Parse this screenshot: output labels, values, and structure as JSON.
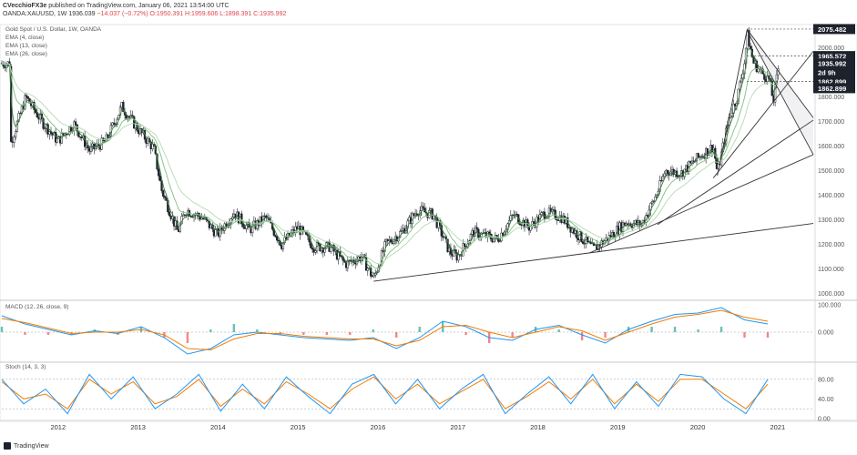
{
  "header": {
    "author": "CVecchioFX3e",
    "published": "published on TradingView.com, January 06, 2021 13:54:00 UTC"
  },
  "symbol_line": {
    "ticker": "OANDA:XAUUSD, 1W",
    "last": "1936.039",
    "change": "−14.037 (−0.72%)",
    "ohlc": "O:1950.391 H:1959.606 L:1898.391 C:1935.992"
  },
  "legend": {
    "title": "Gold Spot / U.S. Dollar, 1W, OANDA",
    "ema1": "EMA (4, close)",
    "ema2": "EMA (13, close)",
    "ema3": "EMA (26, close)"
  },
  "indicators": {
    "macd_label": "MACD (12, 26, close, 9)",
    "stoch_label": "Stoch (14, 3, 3)"
  },
  "footer": {
    "brand": "TradingView"
  },
  "colors": {
    "up": "#26a69a",
    "down": "#ef5350",
    "candle": "#1e222d",
    "ema4": "#3a7d3a",
    "ema13": "#7fbf7f",
    "ema26": "#b5d9b5",
    "macd_line": "#2196f3",
    "signal_line": "#f57c00",
    "stoch_k": "#2196f3",
    "stoch_d": "#f57c00"
  },
  "chart_data": [
    {
      "type": "candlestick",
      "title": "Gold Spot / U.S. Dollar, 1W, OANDA",
      "x_ticks": [
        "2012",
        "2013",
        "2014",
        "2015",
        "2016",
        "2017",
        "2018",
        "2019",
        "2020",
        "2021"
      ],
      "y_ticks": [
        "1000.000",
        "1100.000",
        "1200.000",
        "1300.000",
        "1400.000",
        "1500.000",
        "1600.000",
        "1700.000",
        "1800.000",
        "1900.000",
        "2000.000"
      ],
      "y_unit_label": "USD",
      "ylim": [
        980,
        2090
      ],
      "price_badges": [
        "2075.482",
        "1965.572",
        "1935.992",
        "2d 9h",
        "1862.899",
        "1862.899"
      ],
      "closes": [
        [
          2011.4,
          1600
        ],
        [
          2011.6,
          1800
        ],
        [
          2011.8,
          1700
        ],
        [
          2012.0,
          1620
        ],
        [
          2012.2,
          1690
        ],
        [
          2012.4,
          1580
        ],
        [
          2012.6,
          1620
        ],
        [
          2012.8,
          1760
        ],
        [
          2013.0,
          1670
        ],
        [
          2013.2,
          1590
        ],
        [
          2013.3,
          1420
        ],
        [
          2013.5,
          1250
        ],
        [
          2013.6,
          1340
        ],
        [
          2013.8,
          1310
        ],
        [
          2014.0,
          1240
        ],
        [
          2014.2,
          1330
        ],
        [
          2014.4,
          1260
        ],
        [
          2014.6,
          1310
        ],
        [
          2014.8,
          1200
        ],
        [
          2015.0,
          1270
        ],
        [
          2015.2,
          1190
        ],
        [
          2015.4,
          1190
        ],
        [
          2015.6,
          1120
        ],
        [
          2015.8,
          1150
        ],
        [
          2015.95,
          1060
        ],
        [
          2016.1,
          1200
        ],
        [
          2016.3,
          1250
        ],
        [
          2016.5,
          1340
        ],
        [
          2016.7,
          1320
        ],
        [
          2016.9,
          1170
        ],
        [
          2017.0,
          1150
        ],
        [
          2017.2,
          1250
        ],
        [
          2017.5,
          1220
        ],
        [
          2017.7,
          1320
        ],
        [
          2017.9,
          1270
        ],
        [
          2018.1,
          1330
        ],
        [
          2018.3,
          1310
        ],
        [
          2018.5,
          1240
        ],
        [
          2018.7,
          1180
        ],
        [
          2018.9,
          1230
        ],
        [
          2019.1,
          1290
        ],
        [
          2019.3,
          1280
        ],
        [
          2019.5,
          1410
        ],
        [
          2019.6,
          1500
        ],
        [
          2019.8,
          1490
        ],
        [
          2020.0,
          1550
        ],
        [
          2020.2,
          1600
        ],
        [
          2020.25,
          1490
        ],
        [
          2020.4,
          1720
        ],
        [
          2020.5,
          1800
        ],
        [
          2020.6,
          1960
        ],
        [
          2020.62,
          2060
        ],
        [
          2020.7,
          1940
        ],
        [
          2020.8,
          1900
        ],
        [
          2020.9,
          1870
        ],
        [
          2020.95,
          1780
        ],
        [
          2021.0,
          1890
        ],
        [
          2021.02,
          1936
        ]
      ]
    },
    {
      "type": "line",
      "title": "MACD (12, 26, close, 9)",
      "y_ticks": [
        "100.000",
        "0.000"
      ],
      "series": [
        {
          "name": "MACD",
          "values": [
            60,
            30,
            10,
            -10,
            5,
            -5,
            20,
            -20,
            -80,
            -60,
            -10,
            0,
            -10,
            -20,
            -25,
            -30,
            -20,
            -60,
            -20,
            40,
            20,
            -20,
            -30,
            10,
            25,
            -10,
            -40,
            10,
            40,
            65,
            70,
            90,
            45,
            30
          ]
        },
        {
          "name": "Signal",
          "values": [
            50,
            35,
            15,
            -5,
            0,
            0,
            10,
            -10,
            -60,
            -65,
            -25,
            -5,
            -5,
            -15,
            -20,
            -25,
            -25,
            -50,
            -30,
            20,
            25,
            0,
            -20,
            0,
            20,
            5,
            -30,
            0,
            30,
            55,
            65,
            80,
            55,
            40
          ]
        }
      ]
    },
    {
      "type": "line",
      "title": "Stoch (14, 3, 3)",
      "y_ticks": [
        "80.00",
        "40.00",
        "0.00"
      ],
      "ylim": [
        0,
        100
      ],
      "series": [
        {
          "name": "%K",
          "values": [
            80,
            30,
            60,
            10,
            90,
            40,
            85,
            20,
            50,
            90,
            15,
            70,
            20,
            85,
            45,
            10,
            70,
            90,
            30,
            80,
            20,
            60,
            90,
            10,
            50,
            85,
            30,
            90,
            20,
            75,
            25,
            90,
            85,
            40,
            10,
            80
          ]
        },
        {
          "name": "%D",
          "values": [
            75,
            40,
            50,
            20,
            80,
            50,
            75,
            30,
            45,
            80,
            25,
            60,
            30,
            75,
            50,
            20,
            60,
            85,
            40,
            70,
            30,
            55,
            80,
            20,
            45,
            75,
            40,
            80,
            30,
            70,
            35,
            80,
            80,
            50,
            20,
            70
          ]
        }
      ]
    }
  ]
}
